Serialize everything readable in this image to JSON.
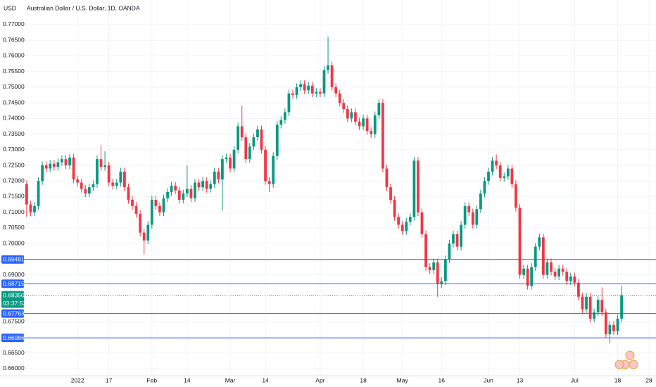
{
  "chart_data": {
    "type": "candlestick",
    "title": "Australian Dollar / U.S. Dollar, 1D, OANDA",
    "y_label": "USD",
    "up_color": "#089981",
    "down_color": "#f23645",
    "grid": true,
    "xlim": [
      -0.7,
      160.8
    ],
    "ylim": [
      0.65775,
      0.77787
    ],
    "xticks": [
      {
        "value": 13,
        "label": "2022"
      },
      {
        "value": 21,
        "label": "17"
      },
      {
        "value": 32,
        "label": "Feb"
      },
      {
        "value": 41,
        "label": "14"
      },
      {
        "value": 52,
        "label": "Mar"
      },
      {
        "value": 61,
        "label": "14"
      },
      {
        "value": 75,
        "label": "Apr"
      },
      {
        "value": 86,
        "label": "18"
      },
      {
        "value": 96,
        "label": "May"
      },
      {
        "value": 106,
        "label": "16"
      },
      {
        "value": 118,
        "label": "Jun"
      },
      {
        "value": 126,
        "label": "13"
      },
      {
        "value": 140,
        "label": "Jul"
      },
      {
        "value": 151,
        "label": "18"
      },
      {
        "value": 159,
        "label": "28"
      }
    ],
    "yticks": [
      {
        "value": 0.77,
        "label": "0.77000"
      },
      {
        "value": 0.765,
        "label": "0.76500"
      },
      {
        "value": 0.76,
        "label": "0.76000"
      },
      {
        "value": 0.755,
        "label": "0.75500"
      },
      {
        "value": 0.75,
        "label": "0.75000"
      },
      {
        "value": 0.745,
        "label": "0.74500"
      },
      {
        "value": 0.74,
        "label": "0.74000"
      },
      {
        "value": 0.735,
        "label": "0.73500"
      },
      {
        "value": 0.73,
        "label": "0.73000"
      },
      {
        "value": 0.725,
        "label": "0.72500"
      },
      {
        "value": 0.72,
        "label": "0.72000"
      },
      {
        "value": 0.715,
        "label": "0.71500"
      },
      {
        "value": 0.71,
        "label": "0.71000"
      },
      {
        "value": 0.705,
        "label": "0.70500"
      },
      {
        "value": 0.7,
        "label": "0.70000"
      },
      {
        "value": 0.69,
        "label": "0.69000"
      },
      {
        "value": 0.675,
        "label": "0.67500"
      },
      {
        "value": 0.665,
        "label": "0.66500"
      },
      {
        "value": 0.66,
        "label": "0.66000"
      }
    ],
    "price_lines": [
      {
        "value": 0.69491,
        "label": "0.69491"
      },
      {
        "value": 0.68715,
        "label": "0.68715"
      },
      {
        "value": 0.67763,
        "label": "0.67763"
      },
      {
        "value": 0.66986,
        "label": "0.66986"
      }
    ],
    "last_price": {
      "value": 0.6835,
      "label": "0.68350"
    },
    "countdown": "03:37:53",
    "open": [
      0.719,
      0.7125,
      0.71,
      0.712,
      0.72,
      0.725,
      0.724,
      0.7255,
      0.7245,
      0.726,
      0.727,
      0.725,
      0.7275,
      0.7205,
      0.7195,
      0.7175,
      0.716,
      0.718,
      0.719,
      0.727,
      0.7245,
      0.725,
      0.7195,
      0.7185,
      0.7195,
      0.723,
      0.718,
      0.714,
      0.712,
      0.7095,
      0.7035,
      0.701,
      0.706,
      0.714,
      0.712,
      0.71,
      0.7145,
      0.7165,
      0.7185,
      0.717,
      0.714,
      0.716,
      0.7175,
      0.7145,
      0.7195,
      0.718,
      0.72,
      0.7175,
      0.719,
      0.723,
      0.7205,
      0.727,
      0.7275,
      0.724,
      0.73,
      0.7375,
      0.734,
      0.727,
      0.731,
      0.734,
      0.7365,
      0.73,
      0.72,
      0.719,
      0.728,
      0.738,
      0.7395,
      0.742,
      0.748,
      0.7475,
      0.75,
      0.751,
      0.749,
      0.7505,
      0.748,
      0.7485,
      0.748,
      0.7555,
      0.757,
      0.75,
      0.748,
      0.745,
      0.743,
      0.74,
      0.742,
      0.739,
      0.7375,
      0.74,
      0.736,
      0.735,
      0.741,
      0.745,
      0.724,
      0.718,
      0.714,
      0.7085,
      0.706,
      0.704,
      0.707,
      0.7085,
      0.7265,
      0.71,
      0.703,
      0.6925,
      0.6915,
      0.694,
      0.687,
      0.688,
      0.695,
      0.7,
      0.703,
      0.699,
      0.706,
      0.712,
      0.71,
      0.706,
      0.711,
      0.716,
      0.72,
      0.723,
      0.7265,
      0.725,
      0.721,
      0.7215,
      0.724,
      0.719,
      0.7115,
      0.69,
      0.692,
      0.6865,
      0.6925,
      0.699,
      0.702,
      0.69,
      0.694,
      0.691,
      0.6895,
      0.692,
      0.691,
      0.688,
      0.6895,
      0.6875,
      0.683,
      0.679,
      0.683,
      0.676,
      0.678,
      0.682,
      0.678,
      0.671,
      0.674,
      0.672,
      0.676
    ],
    "high": [
      0.7202,
      0.7137,
      0.7132,
      0.7212,
      0.7262,
      0.7262,
      0.7267,
      0.7267,
      0.7272,
      0.7282,
      0.7282,
      0.7287,
      0.7287,
      0.7217,
      0.7207,
      0.7187,
      0.7192,
      0.7202,
      0.7282,
      0.7315,
      0.7295,
      0.7262,
      0.7207,
      0.7207,
      0.7242,
      0.7242,
      0.7192,
      0.7152,
      0.7132,
      0.7107,
      0.7047,
      0.7072,
      0.7152,
      0.7152,
      0.7132,
      0.7157,
      0.7177,
      0.7197,
      0.7197,
      0.7182,
      0.7172,
      0.725,
      0.7187,
      0.7207,
      0.7207,
      0.7212,
      0.7212,
      0.7202,
      0.7242,
      0.7242,
      0.7282,
      0.7287,
      0.7287,
      0.7312,
      0.7387,
      0.7441,
      0.7352,
      0.7322,
      0.7352,
      0.7377,
      0.7377,
      0.7312,
      0.7212,
      0.7292,
      0.7392,
      0.7407,
      0.7432,
      0.7492,
      0.7492,
      0.7512,
      0.7522,
      0.7522,
      0.7517,
      0.7517,
      0.7497,
      0.7497,
      0.7567,
      0.7661,
      0.7582,
      0.7512,
      0.7492,
      0.7462,
      0.7442,
      0.7432,
      0.7432,
      0.7402,
      0.7412,
      0.7412,
      0.7372,
      0.7422,
      0.7462,
      0.7462,
      0.7252,
      0.7192,
      0.7152,
      0.7097,
      0.7072,
      0.7082,
      0.7097,
      0.7277,
      0.7277,
      0.7112,
      0.7042,
      0.6937,
      0.6952,
      0.6952,
      0.6892,
      0.6962,
      0.7012,
      0.7042,
      0.7042,
      0.7072,
      0.7132,
      0.7132,
      0.7112,
      0.7122,
      0.7172,
      0.7212,
      0.7242,
      0.7277,
      0.7285,
      0.7262,
      0.7227,
      0.7252,
      0.7252,
      0.7202,
      0.7127,
      0.6932,
      0.6932,
      0.6937,
      0.7002,
      0.7032,
      0.7032,
      0.6952,
      0.6952,
      0.6922,
      0.6932,
      0.6932,
      0.6922,
      0.6907,
      0.6907,
      0.6887,
      0.6842,
      0.6842,
      0.6842,
      0.6792,
      0.6832,
      0.686,
      0.6792,
      0.6752,
      0.6752,
      0.6772,
      0.6865
    ],
    "low": [
      0.7085,
      0.7088,
      0.7088,
      0.7108,
      0.7188,
      0.7228,
      0.7228,
      0.7233,
      0.7233,
      0.7248,
      0.7238,
      0.7238,
      0.7193,
      0.7183,
      0.7163,
      0.7148,
      0.7148,
      0.7168,
      0.7178,
      0.7233,
      0.7233,
      0.7183,
      0.7173,
      0.7173,
      0.7183,
      0.7168,
      0.7128,
      0.7108,
      0.7083,
      0.7023,
      0.6965,
      0.6998,
      0.7048,
      0.7108,
      0.7088,
      0.7088,
      0.7133,
      0.7153,
      0.7158,
      0.7128,
      0.7128,
      0.7148,
      0.7133,
      0.7133,
      0.7168,
      0.7168,
      0.7163,
      0.7163,
      0.7178,
      0.7193,
      0.7105,
      0.7258,
      0.7228,
      0.7228,
      0.7288,
      0.7328,
      0.7258,
      0.7258,
      0.7298,
      0.7328,
      0.7288,
      0.7188,
      0.7165,
      0.7178,
      0.7268,
      0.7368,
      0.7383,
      0.7408,
      0.7463,
      0.7463,
      0.7488,
      0.7478,
      0.7478,
      0.7468,
      0.7468,
      0.7468,
      0.7468,
      0.7543,
      0.7488,
      0.7468,
      0.7438,
      0.7418,
      0.7388,
      0.7388,
      0.7378,
      0.7363,
      0.7363,
      0.7348,
      0.7338,
      0.7338,
      0.7398,
      0.7228,
      0.7168,
      0.7128,
      0.7073,
      0.7048,
      0.7028,
      0.7028,
      0.7058,
      0.7073,
      0.7088,
      0.7018,
      0.6913,
      0.6903,
      0.6903,
      0.683,
      0.6858,
      0.6868,
      0.6938,
      0.6988,
      0.6978,
      0.6978,
      0.7048,
      0.7088,
      0.7048,
      0.7048,
      0.7098,
      0.7148,
      0.7188,
      0.7218,
      0.7238,
      0.7198,
      0.7198,
      0.7203,
      0.7178,
      0.7103,
      0.6888,
      0.6888,
      0.6853,
      0.6853,
      0.6913,
      0.6978,
      0.6888,
      0.6888,
      0.6898,
      0.6883,
      0.6883,
      0.6898,
      0.6868,
      0.6868,
      0.6863,
      0.6818,
      0.6778,
      0.6778,
      0.6748,
      0.6748,
      0.6768,
      0.6768,
      0.6698,
      0.6681,
      0.6708,
      0.6708,
      0.6748
    ],
    "close": [
      0.7125,
      0.71,
      0.712,
      0.72,
      0.725,
      0.724,
      0.7255,
      0.7245,
      0.726,
      0.727,
      0.725,
      0.7275,
      0.7205,
      0.7195,
      0.7175,
      0.716,
      0.718,
      0.719,
      0.727,
      0.7245,
      0.725,
      0.7195,
      0.7185,
      0.7195,
      0.723,
      0.718,
      0.714,
      0.712,
      0.7095,
      0.7035,
      0.701,
      0.706,
      0.714,
      0.712,
      0.71,
      0.7145,
      0.7165,
      0.7185,
      0.717,
      0.714,
      0.716,
      0.7175,
      0.7145,
      0.7195,
      0.718,
      0.72,
      0.7175,
      0.719,
      0.723,
      0.7205,
      0.727,
      0.7275,
      0.724,
      0.73,
      0.7375,
      0.734,
      0.727,
      0.731,
      0.734,
      0.7365,
      0.73,
      0.72,
      0.719,
      0.728,
      0.738,
      0.7395,
      0.742,
      0.748,
      0.7475,
      0.75,
      0.751,
      0.749,
      0.7505,
      0.748,
      0.7485,
      0.748,
      0.7555,
      0.757,
      0.75,
      0.748,
      0.745,
      0.743,
      0.74,
      0.742,
      0.739,
      0.7375,
      0.74,
      0.736,
      0.735,
      0.741,
      0.745,
      0.724,
      0.718,
      0.714,
      0.7085,
      0.706,
      0.704,
      0.707,
      0.7085,
      0.7265,
      0.71,
      0.703,
      0.6925,
      0.6915,
      0.694,
      0.687,
      0.688,
      0.695,
      0.7,
      0.703,
      0.699,
      0.706,
      0.712,
      0.71,
      0.706,
      0.711,
      0.716,
      0.72,
      0.723,
      0.7265,
      0.725,
      0.721,
      0.7215,
      0.724,
      0.719,
      0.7115,
      0.69,
      0.692,
      0.6865,
      0.6925,
      0.699,
      0.702,
      0.69,
      0.694,
      0.691,
      0.6895,
      0.692,
      0.691,
      0.688,
      0.6895,
      0.6875,
      0.683,
      0.679,
      0.683,
      0.676,
      0.678,
      0.682,
      0.678,
      0.671,
      0.674,
      0.672,
      0.676,
      0.6835
    ]
  }
}
